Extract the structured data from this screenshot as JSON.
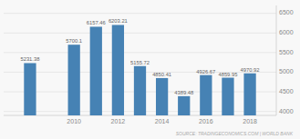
{
  "chart_data": {
    "type": "bar",
    "x": [
      2008,
      2010,
      2011,
      2012,
      2013,
      2014,
      2015,
      2016,
      2017,
      2018
    ],
    "values": [
      5231.38,
      5700.1,
      6157.46,
      6203.21,
      5155.72,
      4850.41,
      4389.48,
      4926.67,
      4859.95,
      4970.92
    ],
    "color": "#4682b4",
    "xlim": [
      2006.8,
      2019.2
    ],
    "xticks": [
      2010,
      2012,
      2014,
      2016,
      2018
    ],
    "ylim": [
      3900,
      6700
    ],
    "yticks": [
      4000,
      4500,
      5000,
      5500,
      6000,
      6500
    ],
    "grid": true,
    "data_labels": true,
    "annotations": [
      "SOURCE: TRADINGECONOMICS.COM | WORLD BANK"
    ]
  }
}
